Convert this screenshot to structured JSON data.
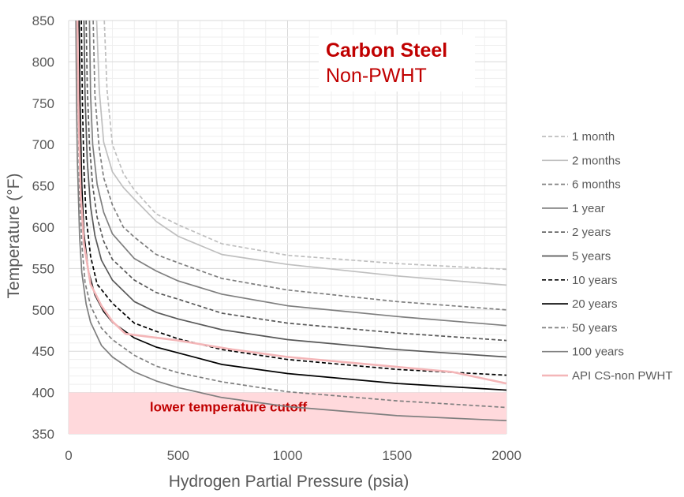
{
  "chart_data": {
    "type": "line",
    "title": "Carbon Steel",
    "subtitle": "Non-PWHT",
    "xlabel": "Hydrogen Partial Pressure (psia)",
    "ylabel": "Temperature (°F)",
    "xlim": [
      0,
      2000
    ],
    "ylim": [
      350,
      850
    ],
    "xticks": [
      "0",
      "500",
      "1000",
      "1500",
      "2000"
    ],
    "yticks": [
      "350",
      "400",
      "450",
      "500",
      "550",
      "600",
      "650",
      "700",
      "750",
      "800",
      "850"
    ],
    "grid": true,
    "legend_position": "right",
    "cutoff_label": "lower temperature cutoff",
    "cutoff_range": [
      350,
      400
    ],
    "series": [
      {
        "name": "1 month",
        "color": "#bfbfbf",
        "dash": "dashed",
        "x": [
          163,
          175,
          200,
          250,
          300,
          400,
          500,
          700,
          1000,
          1500,
          2000
        ],
        "y": [
          850,
          767,
          700,
          665,
          645,
          616,
          603,
          580,
          566,
          556,
          549
        ]
      },
      {
        "name": "2 months",
        "color": "#bfbfbf",
        "dash": "solid",
        "x": [
          128,
          140,
          160,
          200,
          250,
          300,
          400,
          500,
          700,
          1000,
          1500,
          2000
        ],
        "y": [
          850,
          766,
          703,
          667,
          648,
          634,
          607,
          589,
          567,
          555,
          541,
          530
        ]
      },
      {
        "name": "6 months",
        "color": "#7f7f7f",
        "dash": "dashed",
        "x": [
          112,
          120,
          140,
          160,
          200,
          250,
          300,
          400,
          500,
          700,
          1000,
          1500,
          2000
        ],
        "y": [
          850,
          760,
          695,
          660,
          627,
          600,
          588,
          567,
          557,
          538,
          524,
          510,
          500
        ]
      },
      {
        "name": "1 year",
        "color": "#7f7f7f",
        "dash": "solid",
        "x": [
          95,
          100,
          110,
          130,
          160,
          200,
          300,
          400,
          500,
          700,
          1000,
          1500,
          2000
        ],
        "y": [
          850,
          760,
          700,
          652,
          618,
          592,
          562,
          547,
          535,
          519,
          505,
          492,
          481
        ]
      },
      {
        "name": "2 years",
        "color": "#595959",
        "dash": "dashed",
        "x": [
          80,
          85,
          95,
          110,
          130,
          160,
          200,
          300,
          400,
          500,
          700,
          1000,
          1500,
          2000
        ],
        "y": [
          850,
          770,
          700,
          650,
          612,
          583,
          561,
          536,
          521,
          513,
          496,
          484,
          472,
          463
        ]
      },
      {
        "name": "5 years",
        "color": "#595959",
        "dash": "solid",
        "x": [
          70,
          75,
          85,
          100,
          120,
          150,
          200,
          300,
          400,
          500,
          700,
          1000,
          1500,
          2000
        ],
        "y": [
          850,
          760,
          680,
          625,
          590,
          560,
          536,
          510,
          497,
          489,
          476,
          464,
          452,
          443
        ]
      },
      {
        "name": "10 years",
        "color": "#000000",
        "dash": "dashed",
        "x": [
          58,
          63,
          70,
          80,
          100,
          130,
          200,
          300,
          400,
          500,
          700,
          1000,
          1500,
          2000
        ],
        "y": [
          850,
          750,
          670,
          612,
          565,
          531,
          508,
          484,
          474,
          465,
          452,
          440,
          428,
          421
        ]
      },
      {
        "name": "20 years",
        "color": "#000000",
        "dash": "solid",
        "x": [
          48,
          52,
          60,
          70,
          90,
          120,
          160,
          200,
          300,
          400,
          500,
          700,
          1000,
          1500,
          2000
        ],
        "y": [
          850,
          750,
          650,
          592,
          547,
          518,
          498,
          485,
          466,
          455,
          448,
          434,
          423,
          411,
          403
        ]
      },
      {
        "name": "50 years",
        "color": "#808080",
        "dash": "dashed",
        "x": [
          40,
          43,
          50,
          60,
          75,
          100,
          150,
          200,
          300,
          400,
          500,
          700,
          1000,
          1500,
          2000
        ],
        "y": [
          850,
          750,
          640,
          580,
          533,
          505,
          478,
          464,
          445,
          432,
          424,
          413,
          401,
          390,
          382
        ]
      },
      {
        "name": "100 years",
        "color": "#7f7f7f",
        "dash": "solid",
        "x": [
          33,
          36,
          40,
          50,
          60,
          80,
          100,
          150,
          200,
          300,
          400,
          500,
          700,
          1000,
          1500,
          2000
        ],
        "y": [
          850,
          750,
          680,
          588,
          545,
          507,
          485,
          457,
          443,
          425,
          414,
          406,
          394,
          383,
          372,
          366
        ]
      },
      {
        "name": "API CS-non PWHT",
        "color": "#f4b6b8",
        "dash": "solid",
        "x": [
          40,
          45,
          55,
          70,
          100,
          150,
          200,
          260,
          350,
          500,
          750,
          1000,
          1250,
          1500,
          1750,
          2000
        ],
        "y": [
          850,
          740,
          640,
          580,
          531,
          505,
          486,
          471,
          468,
          463,
          452,
          443,
          437,
          431,
          425,
          411
        ]
      }
    ]
  }
}
